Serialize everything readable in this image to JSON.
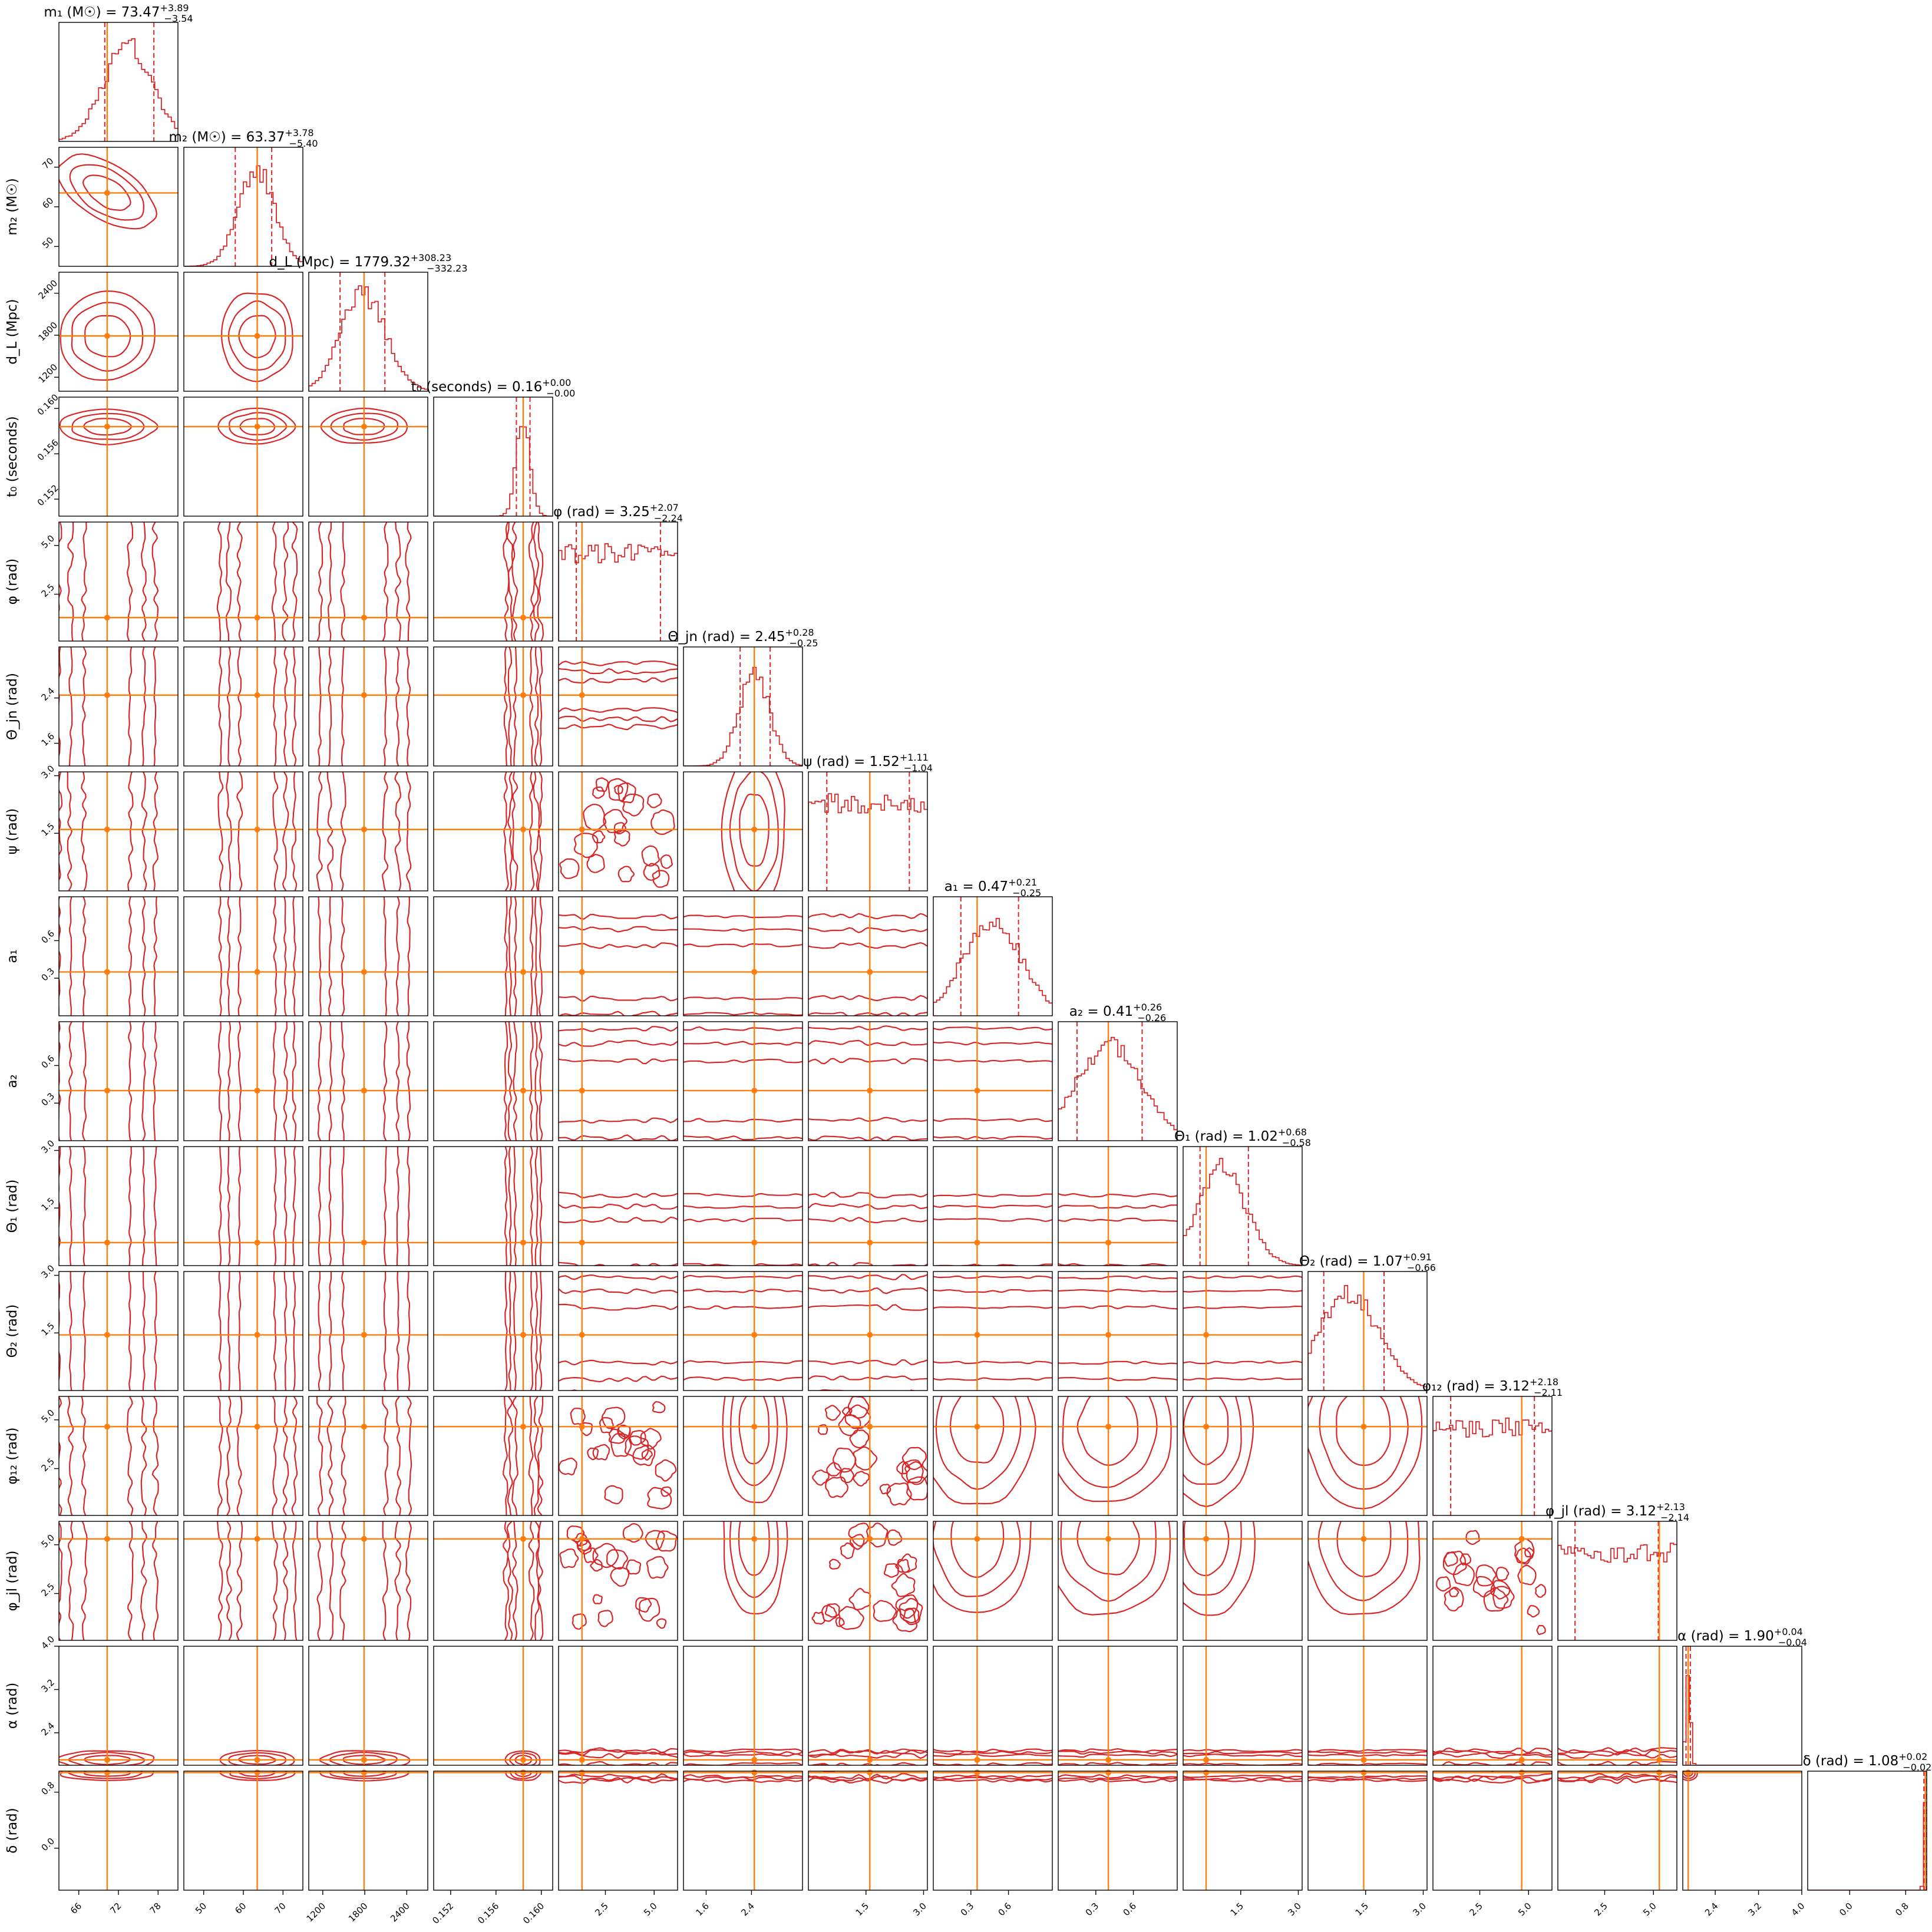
{
  "chart_data": {
    "type": "corner",
    "colors": {
      "posterior": "#d62728",
      "truth": "#ff7f0e",
      "frame": "#000000"
    },
    "parameters": [
      {
        "id": "m1",
        "axis_label": "m₁ (M☉)",
        "title": "m₁ (M☉) = 73.47",
        "title_sup": "+3.89",
        "title_sub": "−3.54",
        "range": [
          63,
          81
        ],
        "ticks": [
          {
            "v": 66,
            "t": "66"
          },
          {
            "v": 72,
            "t": "72"
          },
          {
            "v": 78,
            "t": "78"
          }
        ],
        "median": 73.47,
        "q_low": 69.93,
        "q_high": 77.36,
        "truth": 70.3
      },
      {
        "id": "m2",
        "axis_label": "m₂ (M☉)",
        "title": "m₂ (M☉) = 63.37",
        "title_sup": "+3.78",
        "title_sub": "−5.40",
        "range": [
          45,
          75
        ],
        "ticks": [
          {
            "v": 50,
            "t": "50"
          },
          {
            "v": 60,
            "t": "60"
          },
          {
            "v": 70,
            "t": "70"
          }
        ],
        "median": 63.37,
        "q_low": 57.97,
        "q_high": 67.15,
        "truth": 63.5
      },
      {
        "id": "dL",
        "axis_label": "d_L (Mpc)",
        "title": "d_L (Mpc) = 1779.32",
        "title_sup": "+308.23",
        "title_sub": "−332.23",
        "range": [
          1000,
          2700
        ],
        "ticks": [
          {
            "v": 1200,
            "t": "1200"
          },
          {
            "v": 1800,
            "t": "1800"
          },
          {
            "v": 2400,
            "t": "2400"
          }
        ],
        "median": 1779.32,
        "q_low": 1447.09,
        "q_high": 2087.55,
        "truth": 1790
      },
      {
        "id": "t0",
        "axis_label": "t₀ (seconds)",
        "title": "t₀ (seconds) = 0.16",
        "title_sup": "+0.00",
        "title_sub": "−0.00",
        "range": [
          0.1505,
          0.161
        ],
        "ticks": [
          {
            "v": 0.152,
            "t": "0.152"
          },
          {
            "v": 0.156,
            "t": "0.156"
          },
          {
            "v": 0.16,
            "t": "0.160"
          }
        ],
        "median": 0.1584,
        "q_low": 0.1578,
        "q_high": 0.159,
        "truth": 0.1584
      },
      {
        "id": "phi",
        "axis_label": "φ (rad)",
        "title": "φ (rad) = 3.25",
        "title_sup": "+2.07",
        "title_sub": "−2.24",
        "range": [
          0.1,
          6.2
        ],
        "ticks": [
          {
            "v": 2.5,
            "t": "2.5"
          },
          {
            "v": 5.0,
            "t": "5.0"
          }
        ],
        "median": 3.25,
        "q_low": 1.01,
        "q_high": 5.32,
        "truth": 1.3
      },
      {
        "id": "theta_jn",
        "axis_label": "Θ_jn (rad)",
        "title": "Θ_jn (rad) = 2.45",
        "title_sup": "+0.28",
        "title_sub": "−0.25",
        "range": [
          1.2,
          3.3
        ],
        "ticks": [
          {
            "v": 1.6,
            "t": "1.6"
          },
          {
            "v": 2.4,
            "t": "2.4"
          }
        ],
        "median": 2.45,
        "q_low": 2.2,
        "q_high": 2.73,
        "truth": 2.45
      },
      {
        "id": "psi",
        "axis_label": "ψ (rad)",
        "title": "ψ (rad) = 1.52",
        "title_sup": "+1.11",
        "title_sub": "−1.04",
        "range": [
          0.0,
          3.1
        ],
        "ticks": [
          {
            "v": 1.5,
            "t": "1.5"
          },
          {
            "v": 3.0,
            "t": "3.0"
          }
        ],
        "median": 1.52,
        "q_low": 0.48,
        "q_high": 2.63,
        "truth": 1.6
      },
      {
        "id": "a1",
        "axis_label": "a₁",
        "title": "a₁ = 0.47",
        "title_sup": "+0.21",
        "title_sub": "−0.25",
        "range": [
          0.0,
          0.95
        ],
        "ticks": [
          {
            "v": 0.3,
            "t": "0.3"
          },
          {
            "v": 0.6,
            "t": "0.6"
          }
        ],
        "median": 0.47,
        "q_low": 0.22,
        "q_high": 0.68,
        "truth": 0.35
      },
      {
        "id": "a2",
        "axis_label": "a₂",
        "title": "a₂ = 0.41",
        "title_sup": "+0.26",
        "title_sub": "−0.26",
        "range": [
          0.0,
          0.95
        ],
        "ticks": [
          {
            "v": 0.3,
            "t": "0.3"
          },
          {
            "v": 0.6,
            "t": "0.6"
          }
        ],
        "median": 0.41,
        "q_low": 0.15,
        "q_high": 0.67,
        "truth": 0.4
      },
      {
        "id": "theta1",
        "axis_label": "Θ₁ (rad)",
        "title": "Θ₁ (rad) = 1.02",
        "title_sup": "+0.68",
        "title_sub": "−0.58",
        "range": [
          0.0,
          3.1
        ],
        "ticks": [
          {
            "v": 1.5,
            "t": "1.5"
          },
          {
            "v": 3.0,
            "t": "3.0"
          }
        ],
        "median": 1.02,
        "q_low": 0.44,
        "q_high": 1.7,
        "truth": 0.6
      },
      {
        "id": "theta2",
        "axis_label": "Θ₂ (rad)",
        "title": "Θ₂ (rad) = 1.07",
        "title_sup": "+0.91",
        "title_sub": "−0.66",
        "range": [
          0.0,
          3.1
        ],
        "ticks": [
          {
            "v": 1.5,
            "t": "1.5"
          },
          {
            "v": 3.0,
            "t": "3.0"
          }
        ],
        "median": 1.07,
        "q_low": 0.41,
        "q_high": 1.98,
        "truth": 1.45
      },
      {
        "id": "phi12",
        "axis_label": "φ₁₂ (rad)",
        "title": "φ₁₂ (rad) = 3.12",
        "title_sup": "+2.18",
        "title_sub": "−2.11",
        "range": [
          0.1,
          6.2
        ],
        "ticks": [
          {
            "v": 2.5,
            "t": "2.5"
          },
          {
            "v": 5.0,
            "t": "5.0"
          }
        ],
        "median": 3.12,
        "q_low": 1.01,
        "q_high": 5.3,
        "truth": 4.65
      },
      {
        "id": "phijl",
        "axis_label": "φ_jl (rad)",
        "title": "φ_jl (rad) = 3.12",
        "title_sup": "+2.13",
        "title_sub": "−2.14",
        "range": [
          0.1,
          6.2
        ],
        "ticks": [
          {
            "v": 2.5,
            "t": "2.5"
          },
          {
            "v": 5.0,
            "t": "5.0"
          }
        ],
        "median": 3.12,
        "q_low": 0.98,
        "q_high": 5.25,
        "truth": 5.3
      },
      {
        "id": "alpha",
        "axis_label": "α (rad)",
        "title": "α (rad) = 1.90",
        "title_sup": "+0.04",
        "title_sub": "−0.04",
        "range": [
          1.8,
          4.0
        ],
        "ticks": [
          {
            "v": 2.4,
            "t": "2.4"
          },
          {
            "v": 3.2,
            "t": "3.2"
          },
          {
            "v": 4.0,
            "t": "4.0"
          }
        ],
        "median": 1.9,
        "q_low": 1.86,
        "q_high": 1.94,
        "truth": 1.9
      },
      {
        "id": "delta",
        "axis_label": "δ (rad)",
        "title": "δ (rad) = 1.08",
        "title_sup": "+0.02",
        "title_sub": "−0.02",
        "range": [
          -0.6,
          1.1
        ],
        "ticks": [
          {
            "v": 0.0,
            "t": "0.0"
          },
          {
            "v": 0.8,
            "t": "0.8"
          }
        ],
        "median": 1.08,
        "q_low": 1.06,
        "q_high": 1.1,
        "truth": 1.08
      }
    ]
  }
}
